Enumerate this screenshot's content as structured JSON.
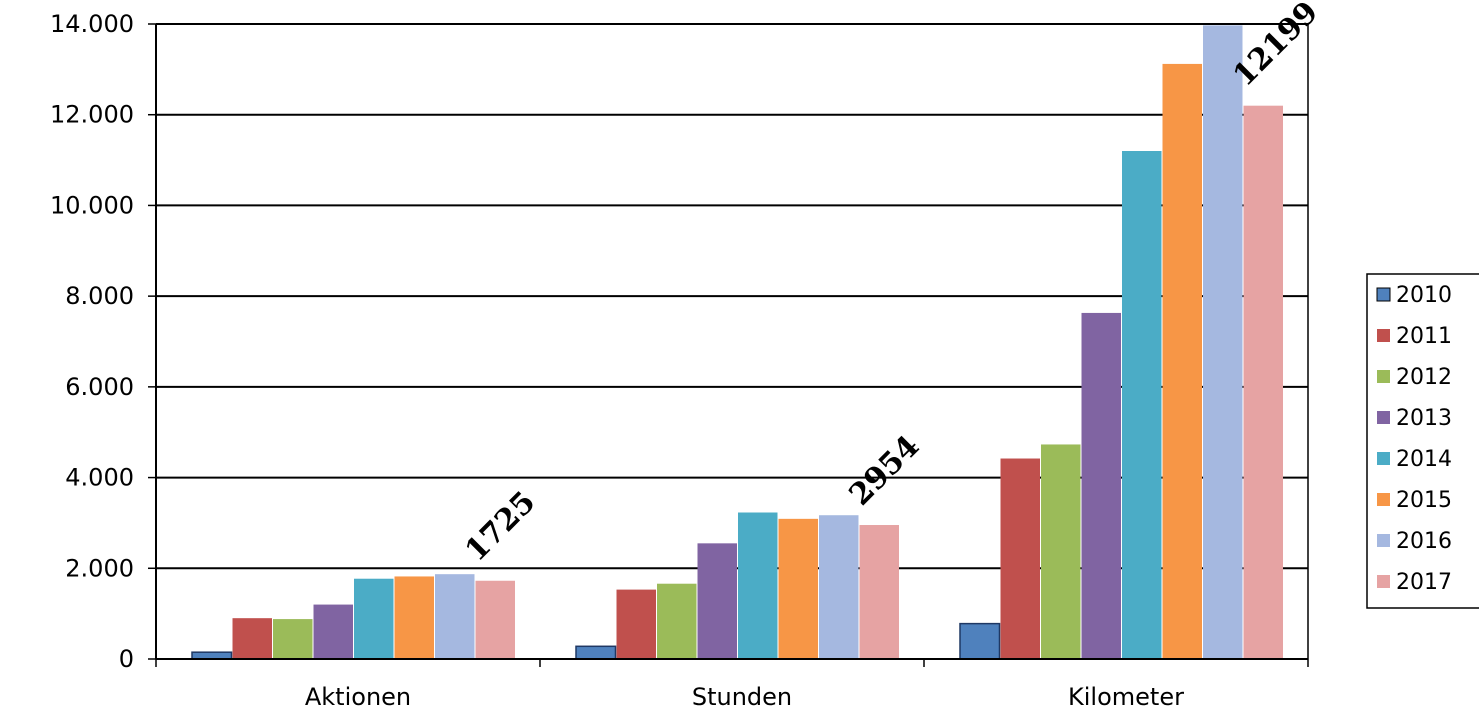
{
  "chart_data": {
    "type": "bar",
    "categories": [
      "Aktionen",
      "Stunden",
      "Kilometer"
    ],
    "ylim": [
      0,
      14000
    ],
    "ytick_values": [
      0,
      2000,
      4000,
      6000,
      8000,
      10000,
      12000,
      14000
    ],
    "ytick_labels": [
      "0",
      "2.000",
      "4.000",
      "6.000",
      "8.000",
      "10.000",
      "12.000",
      "14.000"
    ],
    "grid": true,
    "legend_position": "right",
    "series": [
      {
        "name": "2010",
        "color": "#4F81BD",
        "values": [
          150,
          280,
          780
        ]
      },
      {
        "name": "2011",
        "color": "#C0504D",
        "values": [
          900,
          1530,
          4420
        ]
      },
      {
        "name": "2012",
        "color": "#9BBB59",
        "values": [
          880,
          1660,
          4730
        ]
      },
      {
        "name": "2013",
        "color": "#8064A2",
        "values": [
          1200,
          2550,
          7630
        ]
      },
      {
        "name": "2014",
        "color": "#4BACC6",
        "values": [
          1770,
          3230,
          11200
        ]
      },
      {
        "name": "2015",
        "color": "#F79646",
        "values": [
          1820,
          3090,
          13120
        ]
      },
      {
        "name": "2016",
        "color": "#A5B8E0",
        "values": [
          1870,
          3170,
          13970
        ]
      },
      {
        "name": "2017",
        "color": "#E6A3A3",
        "values": [
          1725,
          2954,
          12199
        ]
      }
    ],
    "annotations": [
      {
        "text": "1725",
        "category": 0
      },
      {
        "text": "2954",
        "category": 1
      },
      {
        "text": "12199",
        "category": 2
      }
    ]
  }
}
